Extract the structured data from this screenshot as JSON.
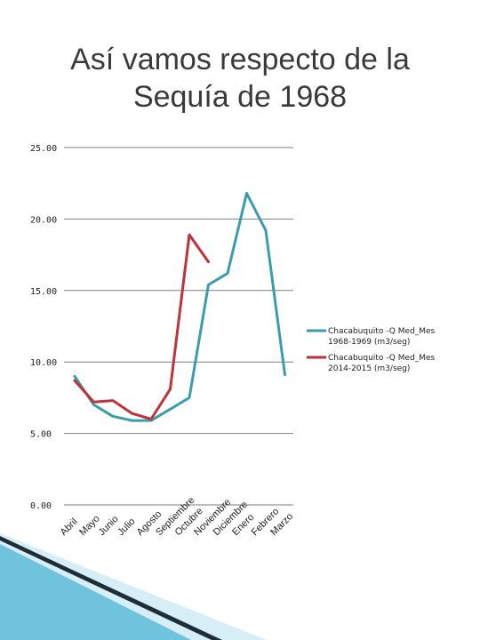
{
  "title_line1": "Así vamos respecto de la",
  "title_line2": "Sequía de 1968",
  "colors": {
    "series1": "#3a9dae",
    "series2": "#c0323a",
    "grid": "#7f7f7f",
    "decor_light": "#d6eef5",
    "decor_mid": "#6fc3dc",
    "decor_dark": "#1f2d3a"
  },
  "chart_data": {
    "type": "line",
    "categories": [
      "Abril",
      "Mayo",
      "Junio",
      "Julio",
      "Agosto",
      "Septiembre",
      "Octubre",
      "Noviembre",
      "Diciembre",
      "Enero",
      "Febrero",
      "Marzo"
    ],
    "y_ticks": [
      "0.00",
      "5.00",
      "10.00",
      "15.00",
      "20.00",
      "25.00"
    ],
    "ylim": [
      0,
      25
    ],
    "grid": true,
    "legend_position": "right",
    "series": [
      {
        "name": "Chacabuquito -Q Med_Mes 1968-1969 (m3/seg)",
        "legend_lines": [
          "Chacabuquito -Q Med_Mes",
          "1968-1969 (m3/seg)"
        ],
        "color": "#3a9dae",
        "values": [
          9.0,
          7.0,
          6.2,
          5.9,
          5.9,
          6.7,
          7.5,
          15.4,
          16.2,
          21.8,
          19.2,
          9.1
        ]
      },
      {
        "name": "Chacabuquito -Q Med_Mes 2014-2015 (m3/seg)",
        "legend_lines": [
          "Chacabuquito -Q Med_Mes",
          "2014-2015 (m3/seg)"
        ],
        "color": "#c0323a",
        "values": [
          8.7,
          7.2,
          7.3,
          6.4,
          6.0,
          8.1,
          18.9,
          17.0,
          null,
          null,
          null,
          null
        ]
      }
    ]
  }
}
